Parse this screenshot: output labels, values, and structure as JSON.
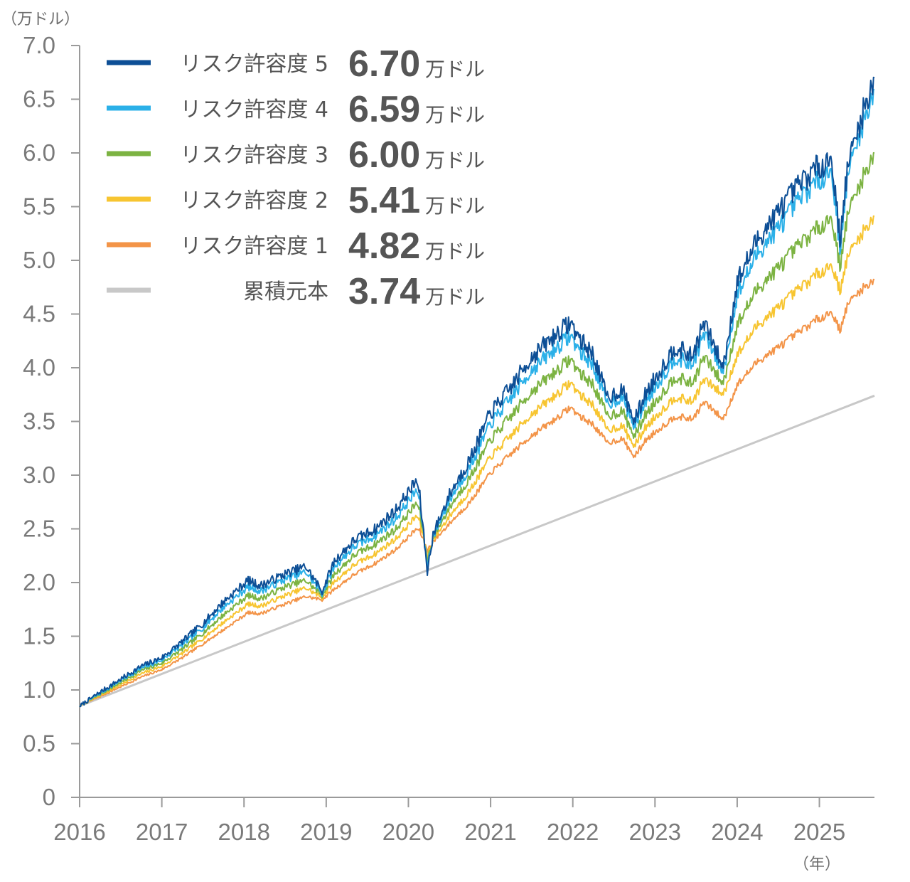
{
  "chart_data": {
    "type": "line",
    "y_unit_label": "（万ドル）",
    "x_unit_label": "（年）",
    "ylim": [
      0,
      7.0
    ],
    "y_ticks": [
      "0",
      "0.5",
      "1.0",
      "1.5",
      "2.0",
      "2.5",
      "3.0",
      "3.5",
      "4.0",
      "4.5",
      "5.0",
      "5.5",
      "6.0",
      "6.5",
      "7.0"
    ],
    "x_ticks": [
      "2016",
      "2017",
      "2018",
      "2019",
      "2020",
      "2021",
      "2022",
      "2023",
      "2024",
      "2025"
    ],
    "xlim": [
      2016.0,
      2025.67
    ],
    "value_unit": "万ドル",
    "series": [
      {
        "name": "リスク許容度 5",
        "value_label": "6.70",
        "color": "#0d4f96",
        "points": [
          [
            2016.0,
            0.85
          ],
          [
            2016.25,
            0.98
          ],
          [
            2016.5,
            1.1
          ],
          [
            2016.75,
            1.22
          ],
          [
            2017.0,
            1.3
          ],
          [
            2017.25,
            1.45
          ],
          [
            2017.5,
            1.62
          ],
          [
            2017.75,
            1.82
          ],
          [
            2018.05,
            2.02
          ],
          [
            2018.2,
            1.97
          ],
          [
            2018.5,
            2.08
          ],
          [
            2018.75,
            2.15
          ],
          [
            2018.95,
            1.92
          ],
          [
            2019.1,
            2.2
          ],
          [
            2019.35,
            2.4
          ],
          [
            2019.6,
            2.5
          ],
          [
            2019.85,
            2.68
          ],
          [
            2020.1,
            2.95
          ],
          [
            2020.14,
            2.8
          ],
          [
            2020.23,
            2.1
          ],
          [
            2020.3,
            2.45
          ],
          [
            2020.5,
            2.82
          ],
          [
            2020.75,
            3.15
          ],
          [
            2021.0,
            3.58
          ],
          [
            2021.25,
            3.82
          ],
          [
            2021.5,
            4.1
          ],
          [
            2021.75,
            4.28
          ],
          [
            2021.97,
            4.42
          ],
          [
            2022.1,
            4.25
          ],
          [
            2022.25,
            4.12
          ],
          [
            2022.42,
            3.72
          ],
          [
            2022.6,
            3.8
          ],
          [
            2022.75,
            3.5
          ],
          [
            2022.88,
            3.75
          ],
          [
            2023.0,
            3.9
          ],
          [
            2023.25,
            4.2
          ],
          [
            2023.45,
            4.1
          ],
          [
            2023.6,
            4.42
          ],
          [
            2023.83,
            4.0
          ],
          [
            2024.0,
            4.8
          ],
          [
            2024.25,
            5.2
          ],
          [
            2024.5,
            5.45
          ],
          [
            2024.75,
            5.7
          ],
          [
            2024.95,
            5.85
          ],
          [
            2025.15,
            5.95
          ],
          [
            2025.25,
            5.2
          ],
          [
            2025.35,
            5.9
          ],
          [
            2025.5,
            6.3
          ],
          [
            2025.67,
            6.7
          ]
        ]
      },
      {
        "name": "リスク許容度 4",
        "value_label": "6.59",
        "color": "#2bb0e8",
        "points": [
          [
            2016.0,
            0.85
          ],
          [
            2016.25,
            0.97
          ],
          [
            2016.5,
            1.09
          ],
          [
            2016.75,
            1.2
          ],
          [
            2017.0,
            1.28
          ],
          [
            2017.25,
            1.42
          ],
          [
            2017.5,
            1.58
          ],
          [
            2017.75,
            1.77
          ],
          [
            2018.05,
            1.96
          ],
          [
            2018.2,
            1.92
          ],
          [
            2018.5,
            2.03
          ],
          [
            2018.75,
            2.1
          ],
          [
            2018.95,
            1.9
          ],
          [
            2019.1,
            2.15
          ],
          [
            2019.35,
            2.34
          ],
          [
            2019.6,
            2.44
          ],
          [
            2019.85,
            2.6
          ],
          [
            2020.1,
            2.86
          ],
          [
            2020.14,
            2.75
          ],
          [
            2020.23,
            2.15
          ],
          [
            2020.3,
            2.43
          ],
          [
            2020.5,
            2.77
          ],
          [
            2020.75,
            3.08
          ],
          [
            2021.0,
            3.48
          ],
          [
            2021.25,
            3.72
          ],
          [
            2021.5,
            3.98
          ],
          [
            2021.75,
            4.15
          ],
          [
            2021.97,
            4.3
          ],
          [
            2022.1,
            4.14
          ],
          [
            2022.25,
            4.02
          ],
          [
            2022.42,
            3.66
          ],
          [
            2022.6,
            3.73
          ],
          [
            2022.75,
            3.45
          ],
          [
            2022.88,
            3.68
          ],
          [
            2023.0,
            3.82
          ],
          [
            2023.25,
            4.1
          ],
          [
            2023.45,
            4.02
          ],
          [
            2023.6,
            4.32
          ],
          [
            2023.83,
            3.95
          ],
          [
            2024.0,
            4.68
          ],
          [
            2024.25,
            5.07
          ],
          [
            2024.5,
            5.3
          ],
          [
            2024.75,
            5.56
          ],
          [
            2024.95,
            5.72
          ],
          [
            2025.15,
            5.84
          ],
          [
            2025.25,
            5.12
          ],
          [
            2025.35,
            5.82
          ],
          [
            2025.5,
            6.2
          ],
          [
            2025.67,
            6.59
          ]
        ]
      },
      {
        "name": "リスク許容度 3",
        "value_label": "6.00",
        "color": "#7cb342",
        "points": [
          [
            2016.0,
            0.85
          ],
          [
            2016.25,
            0.96
          ],
          [
            2016.5,
            1.07
          ],
          [
            2016.75,
            1.18
          ],
          [
            2017.0,
            1.25
          ],
          [
            2017.25,
            1.38
          ],
          [
            2017.5,
            1.53
          ],
          [
            2017.75,
            1.7
          ],
          [
            2018.05,
            1.88
          ],
          [
            2018.2,
            1.85
          ],
          [
            2018.5,
            1.96
          ],
          [
            2018.75,
            2.02
          ],
          [
            2018.95,
            1.88
          ],
          [
            2019.1,
            2.08
          ],
          [
            2019.35,
            2.26
          ],
          [
            2019.6,
            2.36
          ],
          [
            2019.85,
            2.5
          ],
          [
            2020.1,
            2.74
          ],
          [
            2020.14,
            2.66
          ],
          [
            2020.23,
            2.2
          ],
          [
            2020.3,
            2.42
          ],
          [
            2020.5,
            2.7
          ],
          [
            2020.75,
            2.98
          ],
          [
            2021.0,
            3.33
          ],
          [
            2021.25,
            3.55
          ],
          [
            2021.5,
            3.78
          ],
          [
            2021.75,
            3.94
          ],
          [
            2021.97,
            4.08
          ],
          [
            2022.1,
            3.94
          ],
          [
            2022.25,
            3.84
          ],
          [
            2022.42,
            3.55
          ],
          [
            2022.6,
            3.6
          ],
          [
            2022.75,
            3.36
          ],
          [
            2022.88,
            3.56
          ],
          [
            2023.0,
            3.68
          ],
          [
            2023.25,
            3.92
          ],
          [
            2023.45,
            3.85
          ],
          [
            2023.6,
            4.1
          ],
          [
            2023.83,
            3.85
          ],
          [
            2024.0,
            4.4
          ],
          [
            2024.25,
            4.74
          ],
          [
            2024.5,
            4.93
          ],
          [
            2024.75,
            5.14
          ],
          [
            2024.95,
            5.28
          ],
          [
            2025.15,
            5.4
          ],
          [
            2025.25,
            4.95
          ],
          [
            2025.35,
            5.45
          ],
          [
            2025.5,
            5.72
          ],
          [
            2025.67,
            6.0
          ]
        ]
      },
      {
        "name": "リスク許容度 2",
        "value_label": "5.41",
        "color": "#f7c531",
        "points": [
          [
            2016.0,
            0.85
          ],
          [
            2016.25,
            0.95
          ],
          [
            2016.5,
            1.05
          ],
          [
            2016.75,
            1.15
          ],
          [
            2017.0,
            1.22
          ],
          [
            2017.25,
            1.34
          ],
          [
            2017.5,
            1.48
          ],
          [
            2017.75,
            1.63
          ],
          [
            2018.05,
            1.8
          ],
          [
            2018.2,
            1.78
          ],
          [
            2018.5,
            1.88
          ],
          [
            2018.75,
            1.95
          ],
          [
            2018.95,
            1.86
          ],
          [
            2019.1,
            2.01
          ],
          [
            2019.35,
            2.17
          ],
          [
            2019.6,
            2.27
          ],
          [
            2019.85,
            2.41
          ],
          [
            2020.1,
            2.62
          ],
          [
            2020.14,
            2.57
          ],
          [
            2020.23,
            2.25
          ],
          [
            2020.3,
            2.4
          ],
          [
            2020.5,
            2.62
          ],
          [
            2020.75,
            2.86
          ],
          [
            2021.0,
            3.17
          ],
          [
            2021.25,
            3.37
          ],
          [
            2021.5,
            3.57
          ],
          [
            2021.75,
            3.72
          ],
          [
            2021.97,
            3.86
          ],
          [
            2022.1,
            3.74
          ],
          [
            2022.25,
            3.65
          ],
          [
            2022.42,
            3.42
          ],
          [
            2022.6,
            3.46
          ],
          [
            2022.75,
            3.27
          ],
          [
            2022.88,
            3.44
          ],
          [
            2023.0,
            3.54
          ],
          [
            2023.25,
            3.73
          ],
          [
            2023.45,
            3.68
          ],
          [
            2023.6,
            3.89
          ],
          [
            2023.83,
            3.75
          ],
          [
            2024.0,
            4.12
          ],
          [
            2024.25,
            4.4
          ],
          [
            2024.5,
            4.56
          ],
          [
            2024.75,
            4.73
          ],
          [
            2024.95,
            4.86
          ],
          [
            2025.15,
            4.96
          ],
          [
            2025.25,
            4.72
          ],
          [
            2025.35,
            5.05
          ],
          [
            2025.5,
            5.23
          ],
          [
            2025.67,
            5.41
          ]
        ]
      },
      {
        "name": "リスク許容度 1",
        "value_label": "4.82",
        "color": "#f39448",
        "points": [
          [
            2016.0,
            0.85
          ],
          [
            2016.25,
            0.94
          ],
          [
            2016.5,
            1.03
          ],
          [
            2016.75,
            1.12
          ],
          [
            2017.0,
            1.19
          ],
          [
            2017.25,
            1.3
          ],
          [
            2017.5,
            1.43
          ],
          [
            2017.75,
            1.56
          ],
          [
            2018.05,
            1.72
          ],
          [
            2018.2,
            1.71
          ],
          [
            2018.5,
            1.8
          ],
          [
            2018.75,
            1.87
          ],
          [
            2018.95,
            1.84
          ],
          [
            2019.1,
            1.94
          ],
          [
            2019.35,
            2.08
          ],
          [
            2019.6,
            2.18
          ],
          [
            2019.85,
            2.31
          ],
          [
            2020.1,
            2.5
          ],
          [
            2020.14,
            2.48
          ],
          [
            2020.23,
            2.3
          ],
          [
            2020.3,
            2.38
          ],
          [
            2020.5,
            2.55
          ],
          [
            2020.75,
            2.75
          ],
          [
            2021.0,
            3.02
          ],
          [
            2021.25,
            3.2
          ],
          [
            2021.5,
            3.37
          ],
          [
            2021.75,
            3.5
          ],
          [
            2021.97,
            3.63
          ],
          [
            2022.1,
            3.54
          ],
          [
            2022.25,
            3.47
          ],
          [
            2022.42,
            3.3
          ],
          [
            2022.6,
            3.34
          ],
          [
            2022.75,
            3.17
          ],
          [
            2022.88,
            3.32
          ],
          [
            2023.0,
            3.4
          ],
          [
            2023.25,
            3.55
          ],
          [
            2023.45,
            3.52
          ],
          [
            2023.6,
            3.68
          ],
          [
            2023.83,
            3.52
          ],
          [
            2024.0,
            3.84
          ],
          [
            2024.25,
            4.06
          ],
          [
            2024.5,
            4.19
          ],
          [
            2024.75,
            4.33
          ],
          [
            2024.95,
            4.44
          ],
          [
            2025.15,
            4.52
          ],
          [
            2025.25,
            4.35
          ],
          [
            2025.35,
            4.6
          ],
          [
            2025.5,
            4.72
          ],
          [
            2025.67,
            4.82
          ]
        ]
      },
      {
        "name": "累積元本",
        "value_label": "3.74",
        "color": "#c8c8c8",
        "points": [
          [
            2016.0,
            0.85
          ],
          [
            2025.67,
            3.74
          ]
        ]
      }
    ]
  }
}
